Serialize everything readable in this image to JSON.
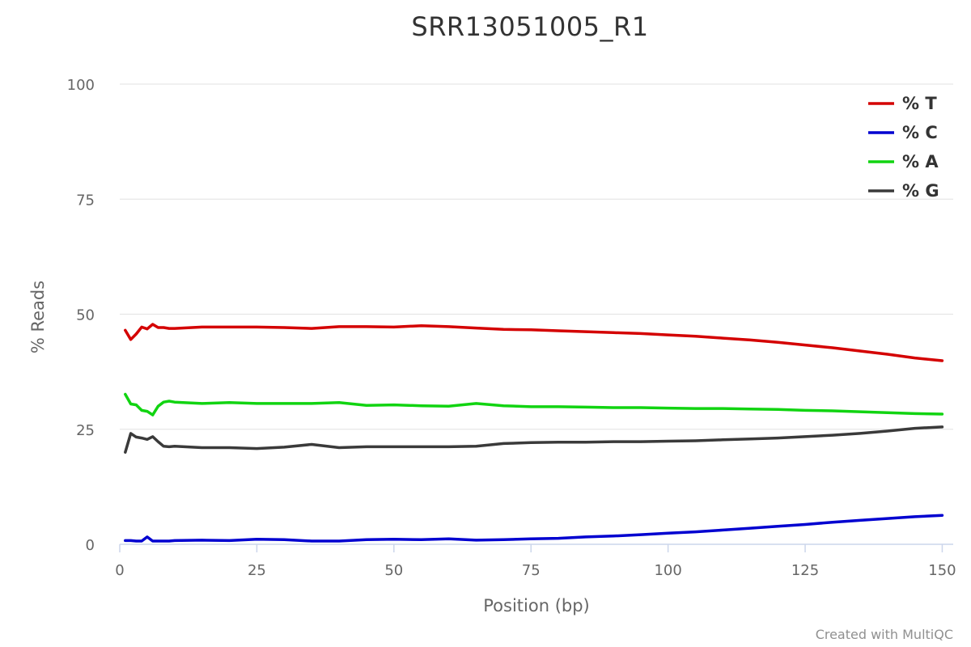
{
  "chart_data": {
    "type": "line",
    "title": "SRR13051005_R1",
    "xlabel": "Position (bp)",
    "ylabel": "% Reads",
    "xlim": [
      0,
      152
    ],
    "ylim": [
      0,
      100
    ],
    "x_ticks": [
      0,
      25,
      50,
      75,
      100,
      125,
      150
    ],
    "y_ticks": [
      0,
      25,
      50,
      75,
      100
    ],
    "grid": "horizontal",
    "legend_position": "top-right",
    "series": [
      {
        "name": "% T",
        "color": "#d40000",
        "points": [
          [
            1,
            46.5
          ],
          [
            2,
            44.5
          ],
          [
            3,
            45.7
          ],
          [
            4,
            47.2
          ],
          [
            5,
            46.8
          ],
          [
            6,
            47.8
          ],
          [
            7,
            47.1
          ],
          [
            8,
            47.1
          ],
          [
            9,
            46.9
          ],
          [
            10,
            46.9
          ],
          [
            15,
            47.2
          ],
          [
            20,
            47.2
          ],
          [
            25,
            47.2
          ],
          [
            30,
            47.1
          ],
          [
            35,
            46.9
          ],
          [
            40,
            47.3
          ],
          [
            45,
            47.3
          ],
          [
            50,
            47.2
          ],
          [
            55,
            47.5
          ],
          [
            60,
            47.3
          ],
          [
            65,
            47.0
          ],
          [
            70,
            46.7
          ],
          [
            75,
            46.6
          ],
          [
            80,
            46.4
          ],
          [
            85,
            46.2
          ],
          [
            90,
            46.0
          ],
          [
            95,
            45.8
          ],
          [
            100,
            45.5
          ],
          [
            105,
            45.2
          ],
          [
            110,
            44.8
          ],
          [
            115,
            44.4
          ],
          [
            120,
            43.9
          ],
          [
            125,
            43.3
          ],
          [
            130,
            42.7
          ],
          [
            135,
            42.0
          ],
          [
            140,
            41.3
          ],
          [
            145,
            40.5
          ],
          [
            150,
            39.9
          ]
        ]
      },
      {
        "name": "% C",
        "color": "#0000d0",
        "points": [
          [
            1,
            0.8
          ],
          [
            2,
            0.8
          ],
          [
            3,
            0.7
          ],
          [
            4,
            0.7
          ],
          [
            5,
            1.6
          ],
          [
            6,
            0.7
          ],
          [
            7,
            0.7
          ],
          [
            8,
            0.7
          ],
          [
            9,
            0.7
          ],
          [
            10,
            0.8
          ],
          [
            15,
            0.9
          ],
          [
            20,
            0.8
          ],
          [
            25,
            1.1
          ],
          [
            30,
            1.0
          ],
          [
            35,
            0.7
          ],
          [
            40,
            0.7
          ],
          [
            45,
            1.0
          ],
          [
            50,
            1.1
          ],
          [
            55,
            1.0
          ],
          [
            60,
            1.2
          ],
          [
            65,
            0.9
          ],
          [
            70,
            1.0
          ],
          [
            75,
            1.2
          ],
          [
            80,
            1.3
          ],
          [
            85,
            1.6
          ],
          [
            90,
            1.8
          ],
          [
            95,
            2.1
          ],
          [
            100,
            2.4
          ],
          [
            105,
            2.7
          ],
          [
            110,
            3.1
          ],
          [
            115,
            3.5
          ],
          [
            120,
            3.9
          ],
          [
            125,
            4.3
          ],
          [
            130,
            4.8
          ],
          [
            135,
            5.2
          ],
          [
            140,
            5.6
          ],
          [
            145,
            6.0
          ],
          [
            150,
            6.3
          ]
        ]
      },
      {
        "name": "% A",
        "color": "#11d411",
        "points": [
          [
            1,
            32.6
          ],
          [
            2,
            30.5
          ],
          [
            3,
            30.3
          ],
          [
            4,
            29.1
          ],
          [
            5,
            28.9
          ],
          [
            6,
            28.1
          ],
          [
            7,
            30.0
          ],
          [
            8,
            30.9
          ],
          [
            9,
            31.1
          ],
          [
            10,
            30.9
          ],
          [
            15,
            30.6
          ],
          [
            20,
            30.8
          ],
          [
            25,
            30.6
          ],
          [
            30,
            30.6
          ],
          [
            35,
            30.6
          ],
          [
            40,
            30.8
          ],
          [
            45,
            30.2
          ],
          [
            50,
            30.3
          ],
          [
            55,
            30.1
          ],
          [
            60,
            30.0
          ],
          [
            65,
            30.6
          ],
          [
            70,
            30.1
          ],
          [
            75,
            29.9
          ],
          [
            80,
            29.9
          ],
          [
            85,
            29.8
          ],
          [
            90,
            29.7
          ],
          [
            95,
            29.7
          ],
          [
            100,
            29.6
          ],
          [
            105,
            29.5
          ],
          [
            110,
            29.5
          ],
          [
            115,
            29.4
          ],
          [
            120,
            29.3
          ],
          [
            125,
            29.1
          ],
          [
            130,
            29.0
          ],
          [
            135,
            28.8
          ],
          [
            140,
            28.6
          ],
          [
            145,
            28.4
          ],
          [
            150,
            28.3
          ]
        ]
      },
      {
        "name": "% G",
        "color": "#3a3a3a",
        "points": [
          [
            1,
            20.0
          ],
          [
            2,
            24.1
          ],
          [
            3,
            23.3
          ],
          [
            4,
            23.1
          ],
          [
            5,
            22.8
          ],
          [
            6,
            23.4
          ],
          [
            7,
            22.3
          ],
          [
            8,
            21.3
          ],
          [
            9,
            21.2
          ],
          [
            10,
            21.3
          ],
          [
            15,
            21.0
          ],
          [
            20,
            21.0
          ],
          [
            25,
            20.8
          ],
          [
            30,
            21.1
          ],
          [
            35,
            21.7
          ],
          [
            40,
            21.0
          ],
          [
            45,
            21.2
          ],
          [
            50,
            21.2
          ],
          [
            55,
            21.2
          ],
          [
            60,
            21.2
          ],
          [
            65,
            21.3
          ],
          [
            70,
            21.9
          ],
          [
            75,
            22.1
          ],
          [
            80,
            22.2
          ],
          [
            85,
            22.2
          ],
          [
            90,
            22.3
          ],
          [
            95,
            22.3
          ],
          [
            100,
            22.4
          ],
          [
            105,
            22.5
          ],
          [
            110,
            22.7
          ],
          [
            115,
            22.9
          ],
          [
            120,
            23.1
          ],
          [
            125,
            23.4
          ],
          [
            130,
            23.7
          ],
          [
            135,
            24.1
          ],
          [
            140,
            24.6
          ],
          [
            145,
            25.2
          ],
          [
            150,
            25.5
          ]
        ]
      }
    ],
    "credit": "Created with MultiQC"
  }
}
